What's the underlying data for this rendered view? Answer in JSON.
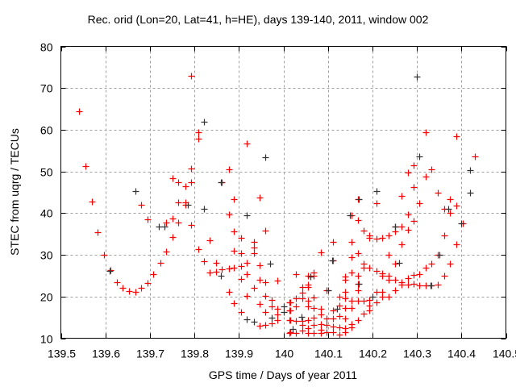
{
  "chart_data": {
    "type": "scatter",
    "title": "Rec. orid (Lon=20, Lat=41, h=HE), days 139-140, 2011, window 002",
    "xlabel": "GPS time / Days of year 2011",
    "ylabel": "STEC from uqrg / TECUs",
    "xlim": [
      139.5,
      140.5
    ],
    "ylim": [
      10,
      80
    ],
    "xticks": [
      "139.5",
      "139.6",
      "139.7",
      "139.8",
      "139.9",
      "140",
      "140.1",
      "140.2",
      "140.3",
      "140.4",
      "140.5"
    ],
    "yticks": [
      "10",
      "20",
      "30",
      "40",
      "50",
      "60",
      "70",
      "80"
    ],
    "grid": true,
    "marker": "plus",
    "series": [
      {
        "name": "red",
        "color": "#ff0000",
        "points": [
          [
            139.541,
            64.4
          ],
          [
            139.556,
            51.2
          ],
          [
            139.569,
            42.8
          ],
          [
            139.582,
            35.4
          ],
          [
            139.597,
            30.1
          ],
          [
            139.611,
            26.3
          ],
          [
            139.625,
            23.5
          ],
          [
            139.639,
            22.1
          ],
          [
            139.653,
            21.3
          ],
          [
            139.667,
            21.1
          ],
          [
            139.681,
            22.0
          ],
          [
            139.694,
            23.2
          ],
          [
            139.708,
            25.3
          ],
          [
            139.723,
            28.1
          ],
          [
            139.736,
            30.8
          ],
          [
            139.751,
            34.3
          ],
          [
            139.764,
            37.7
          ],
          [
            139.751,
            38.8
          ],
          [
            139.736,
            37.7
          ],
          [
            139.694,
            38.5
          ],
          [
            139.681,
            42.0
          ],
          [
            139.751,
            48.3
          ],
          [
            139.764,
            47.4
          ],
          [
            139.779,
            46.5
          ],
          [
            139.793,
            47.4
          ],
          [
            139.793,
            50.8
          ],
          [
            139.764,
            42.5
          ],
          [
            139.779,
            42.5
          ],
          [
            139.779,
            42.0
          ],
          [
            139.793,
            37.1
          ],
          [
            139.793,
            73.0
          ],
          [
            139.808,
            59.5
          ],
          [
            139.808,
            57.8
          ],
          [
            139.808,
            31.4
          ],
          [
            139.821,
            28.5
          ],
          [
            139.834,
            33.5
          ],
          [
            139.834,
            25.7
          ],
          [
            139.849,
            28.1
          ],
          [
            139.849,
            26.0
          ],
          [
            139.862,
            47.4
          ],
          [
            139.862,
            26.5
          ],
          [
            139.877,
            50.5
          ],
          [
            139.877,
            39.6
          ],
          [
            139.877,
            26.8
          ],
          [
            139.877,
            21.1
          ],
          [
            139.889,
            43.3
          ],
          [
            139.889,
            35.6
          ],
          [
            139.889,
            31.0
          ],
          [
            139.889,
            26.9
          ],
          [
            139.889,
            18.4
          ],
          [
            139.904,
            34.1
          ],
          [
            139.904,
            30.4
          ],
          [
            139.904,
            27.3
          ],
          [
            139.904,
            24.3
          ],
          [
            139.904,
            16.2
          ],
          [
            139.918,
            56.7
          ],
          [
            139.918,
            28.1
          ],
          [
            139.918,
            25.4
          ],
          [
            139.918,
            20.1
          ],
          [
            139.933,
            33.1
          ],
          [
            139.933,
            31.8
          ],
          [
            139.933,
            30.4
          ],
          [
            139.933,
            22.1
          ],
          [
            139.946,
            43.7
          ],
          [
            139.946,
            27.5
          ],
          [
            139.946,
            24.1
          ],
          [
            139.946,
            18.3
          ],
          [
            139.946,
            13.0
          ],
          [
            139.959,
            35.8
          ],
          [
            139.959,
            23.4
          ],
          [
            139.959,
            20.1
          ],
          [
            139.959,
            16.2
          ],
          [
            139.959,
            13.2
          ],
          [
            139.974,
            19.2
          ],
          [
            139.974,
            17.6
          ],
          [
            139.974,
            13.6
          ],
          [
            139.987,
            23.9
          ],
          [
            139.987,
            17.1
          ],
          [
            139.987,
            15.8
          ],
          [
            139.987,
            14.4
          ],
          [
            140.016,
            18.6
          ],
          [
            140.016,
            16.6
          ],
          [
            140.016,
            14.4
          ],
          [
            140.016,
            11.5
          ],
          [
            140.319,
            59.5
          ],
          [
            140.389,
            58.5
          ],
          [
            140.431,
            53.7
          ],
          [
            140.293,
            51.4
          ],
          [
            140.279,
            49.7
          ],
          [
            140.333,
            50.5
          ],
          [
            140.319,
            48.7
          ],
          [
            140.293,
            46.2
          ],
          [
            140.265,
            44.2
          ],
          [
            140.347,
            45.0
          ],
          [
            140.374,
            43.4
          ],
          [
            140.305,
            42.3
          ],
          [
            140.389,
            41.8
          ],
          [
            140.362,
            41.0
          ],
          [
            140.374,
            40.1
          ],
          [
            140.279,
            39.7
          ],
          [
            140.293,
            38.1
          ],
          [
            140.403,
            37.5
          ],
          [
            140.209,
            42.3
          ],
          [
            140.167,
            43.3
          ],
          [
            140.153,
            39.4
          ],
          [
            140.167,
            38.4
          ],
          [
            140.25,
            36.8
          ],
          [
            140.265,
            36.8
          ],
          [
            140.25,
            35.6
          ],
          [
            140.279,
            36.1
          ],
          [
            140.181,
            35.8
          ],
          [
            140.193,
            34.7
          ],
          [
            140.193,
            34.1
          ],
          [
            140.209,
            33.9
          ],
          [
            140.222,
            34.1
          ],
          [
            140.237,
            34.6
          ],
          [
            140.362,
            34.6
          ],
          [
            140.389,
            32.5
          ],
          [
            140.265,
            32.6
          ],
          [
            140.111,
            33.1
          ],
          [
            140.153,
            33.1
          ],
          [
            140.084,
            30.5
          ],
          [
            140.111,
            28.6
          ],
          [
            140.153,
            29.4
          ],
          [
            140.167,
            30.4
          ],
          [
            140.237,
            30.1
          ],
          [
            140.347,
            30.1
          ],
          [
            140.181,
            27.9
          ],
          [
            140.181,
            27.0
          ],
          [
            140.25,
            27.9
          ],
          [
            140.333,
            27.9
          ],
          [
            140.374,
            27.9
          ],
          [
            140.319,
            27.0
          ],
          [
            140.193,
            27.0
          ],
          [
            140.209,
            26.2
          ],
          [
            140.222,
            25.6
          ],
          [
            140.222,
            24.9
          ],
          [
            140.305,
            25.4
          ],
          [
            140.293,
            25.1
          ],
          [
            140.237,
            24.9
          ],
          [
            140.237,
            24.0
          ],
          [
            140.25,
            24.0
          ],
          [
            140.279,
            24.4
          ],
          [
            140.265,
            23.4
          ],
          [
            140.265,
            22.8
          ],
          [
            140.279,
            22.8
          ],
          [
            140.293,
            23.1
          ],
          [
            140.305,
            22.6
          ],
          [
            140.319,
            22.6
          ],
          [
            140.333,
            22.6
          ],
          [
            140.347,
            22.8
          ],
          [
            140.362,
            24.9
          ],
          [
            140.153,
            25.8
          ],
          [
            140.167,
            24.9
          ],
          [
            140.139,
            24.7
          ],
          [
            140.139,
            24.1
          ],
          [
            140.167,
            23.1
          ],
          [
            140.167,
            21.6
          ],
          [
            140.139,
            21.2
          ],
          [
            140.153,
            18.9
          ],
          [
            140.167,
            18.9
          ],
          [
            140.181,
            19.0
          ],
          [
            140.193,
            19.2
          ],
          [
            140.193,
            17.9
          ],
          [
            140.193,
            16.6
          ],
          [
            140.209,
            21.2
          ],
          [
            140.209,
            18.6
          ],
          [
            140.222,
            21.2
          ],
          [
            140.222,
            19.9
          ],
          [
            140.237,
            19.9
          ],
          [
            140.25,
            21.5
          ],
          [
            140.028,
            25.4
          ],
          [
            140.056,
            24.9
          ],
          [
            140.068,
            24.9
          ],
          [
            140.068,
            25.8
          ],
          [
            140.042,
            22.3
          ],
          [
            140.042,
            20.9
          ],
          [
            140.056,
            22.9
          ],
          [
            140.056,
            22.2
          ],
          [
            140.097,
            21.6
          ],
          [
            140.014,
            18.6
          ],
          [
            140.028,
            19.6
          ],
          [
            140.042,
            19.6
          ],
          [
            140.056,
            18.9
          ],
          [
            140.068,
            19.7
          ],
          [
            140.014,
            16.6
          ],
          [
            140.028,
            17.6
          ],
          [
            140.056,
            17.6
          ],
          [
            140.068,
            17.2
          ],
          [
            140.084,
            17.0
          ],
          [
            140.097,
            14.7
          ],
          [
            140.111,
            16.6
          ],
          [
            140.125,
            19.9
          ],
          [
            140.125,
            17.9
          ],
          [
            140.125,
            15.4
          ],
          [
            140.139,
            19.6
          ],
          [
            140.139,
            17.3
          ],
          [
            140.153,
            17.3
          ],
          [
            140.181,
            15.9
          ],
          [
            140.167,
            14.4
          ],
          [
            140.014,
            14.4
          ],
          [
            140.014,
            11.3
          ],
          [
            140.028,
            14.1
          ],
          [
            140.028,
            11.3
          ],
          [
            140.042,
            14.1
          ],
          [
            140.042,
            13.1
          ],
          [
            140.042,
            11.8
          ],
          [
            140.056,
            14.4
          ],
          [
            140.056,
            12.5
          ],
          [
            140.056,
            11.2
          ],
          [
            140.068,
            15.0
          ],
          [
            140.068,
            13.2
          ],
          [
            140.068,
            11.2
          ],
          [
            140.084,
            15.7
          ],
          [
            140.084,
            13.4
          ],
          [
            140.084,
            12.1
          ],
          [
            140.084,
            11.3
          ],
          [
            140.097,
            13.2
          ],
          [
            140.097,
            11.5
          ],
          [
            140.111,
            14.7
          ],
          [
            140.111,
            12.8
          ],
          [
            140.111,
            11.5
          ],
          [
            140.125,
            12.6
          ],
          [
            140.125,
            10.9
          ],
          [
            140.139,
            14.7
          ],
          [
            140.139,
            12.5
          ],
          [
            140.139,
            11.5
          ],
          [
            140.153,
            13.4
          ],
          [
            140.153,
            12.6
          ]
        ]
      },
      {
        "name": "black",
        "color": "#333333",
        "points": [
          [
            139.61,
            26.2
          ],
          [
            139.667,
            45.2
          ],
          [
            139.72,
            36.8
          ],
          [
            139.732,
            36.8
          ],
          [
            139.785,
            42.0
          ],
          [
            139.822,
            41.0
          ],
          [
            139.822,
            61.9
          ],
          [
            139.86,
            47.4
          ],
          [
            139.86,
            25.0
          ],
          [
            139.918,
            39.4
          ],
          [
            139.918,
            14.6
          ],
          [
            139.933,
            14.0
          ],
          [
            139.959,
            53.4
          ],
          [
            139.97,
            27.9
          ],
          [
            139.974,
            15.0
          ],
          [
            140.0,
            16.2
          ],
          [
            140.0,
            17.6
          ],
          [
            140.02,
            12.2
          ],
          [
            140.04,
            15.2
          ],
          [
            140.06,
            24.7
          ],
          [
            140.1,
            21.6
          ],
          [
            140.11,
            28.6
          ],
          [
            140.12,
            17.0
          ],
          [
            140.15,
            39.4
          ],
          [
            140.17,
            43.3
          ],
          [
            140.17,
            23.0
          ],
          [
            140.2,
            20.0
          ],
          [
            140.21,
            45.2
          ],
          [
            140.25,
            36.8
          ],
          [
            140.26,
            28.0
          ],
          [
            140.3,
            72.8
          ],
          [
            140.305,
            53.7
          ],
          [
            140.35,
            30.1
          ],
          [
            140.37,
            41.0
          ],
          [
            140.4,
            37.5
          ],
          [
            140.42,
            45.0
          ],
          [
            140.42,
            50.3
          ],
          [
            140.33,
            22.6
          ]
        ]
      }
    ]
  }
}
